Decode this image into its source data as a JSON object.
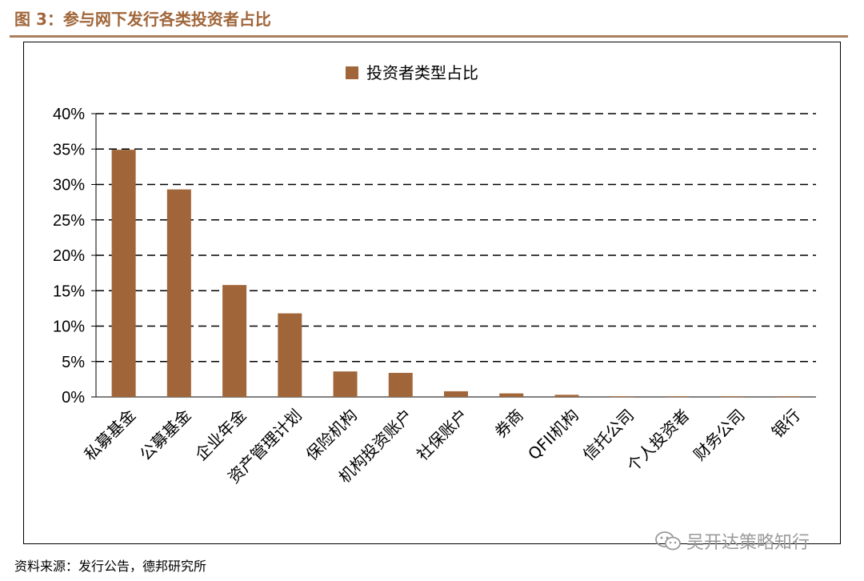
{
  "figure": {
    "title": "图 3：参与网下发行各类投资者占比",
    "source": "资料来源：发行公告，德邦研究所",
    "watermark_text": "吴开达策略知行",
    "watermark_icon": "wechat-icon"
  },
  "colors": {
    "bar": "#A0663A",
    "title": "#A0663A",
    "rule": "#A88060",
    "grid": "#000000"
  },
  "chart_data": {
    "type": "bar",
    "title": "",
    "xlabel": "",
    "ylabel": "",
    "ylim": [
      0,
      40
    ],
    "yticks": [
      "0%",
      "5%",
      "10%",
      "15%",
      "20%",
      "25%",
      "30%",
      "35%",
      "40%"
    ],
    "grid": "dashed-horizontal",
    "legend_position": "top-center",
    "categories": [
      "私募基金",
      "公募基金",
      "企业年金",
      "资产管理计划",
      "保险机构",
      "机构投资账户",
      "社保账户",
      "券商",
      "QFII机构",
      "信托公司",
      "个人投资者",
      "财务公司",
      "银行"
    ],
    "series": [
      {
        "name": "投资者类型占比",
        "values": [
          34.9,
          29.3,
          15.8,
          11.8,
          3.6,
          3.4,
          0.8,
          0.5,
          0.3,
          0.1,
          0.1,
          0.1,
          0.1
        ]
      }
    ]
  }
}
